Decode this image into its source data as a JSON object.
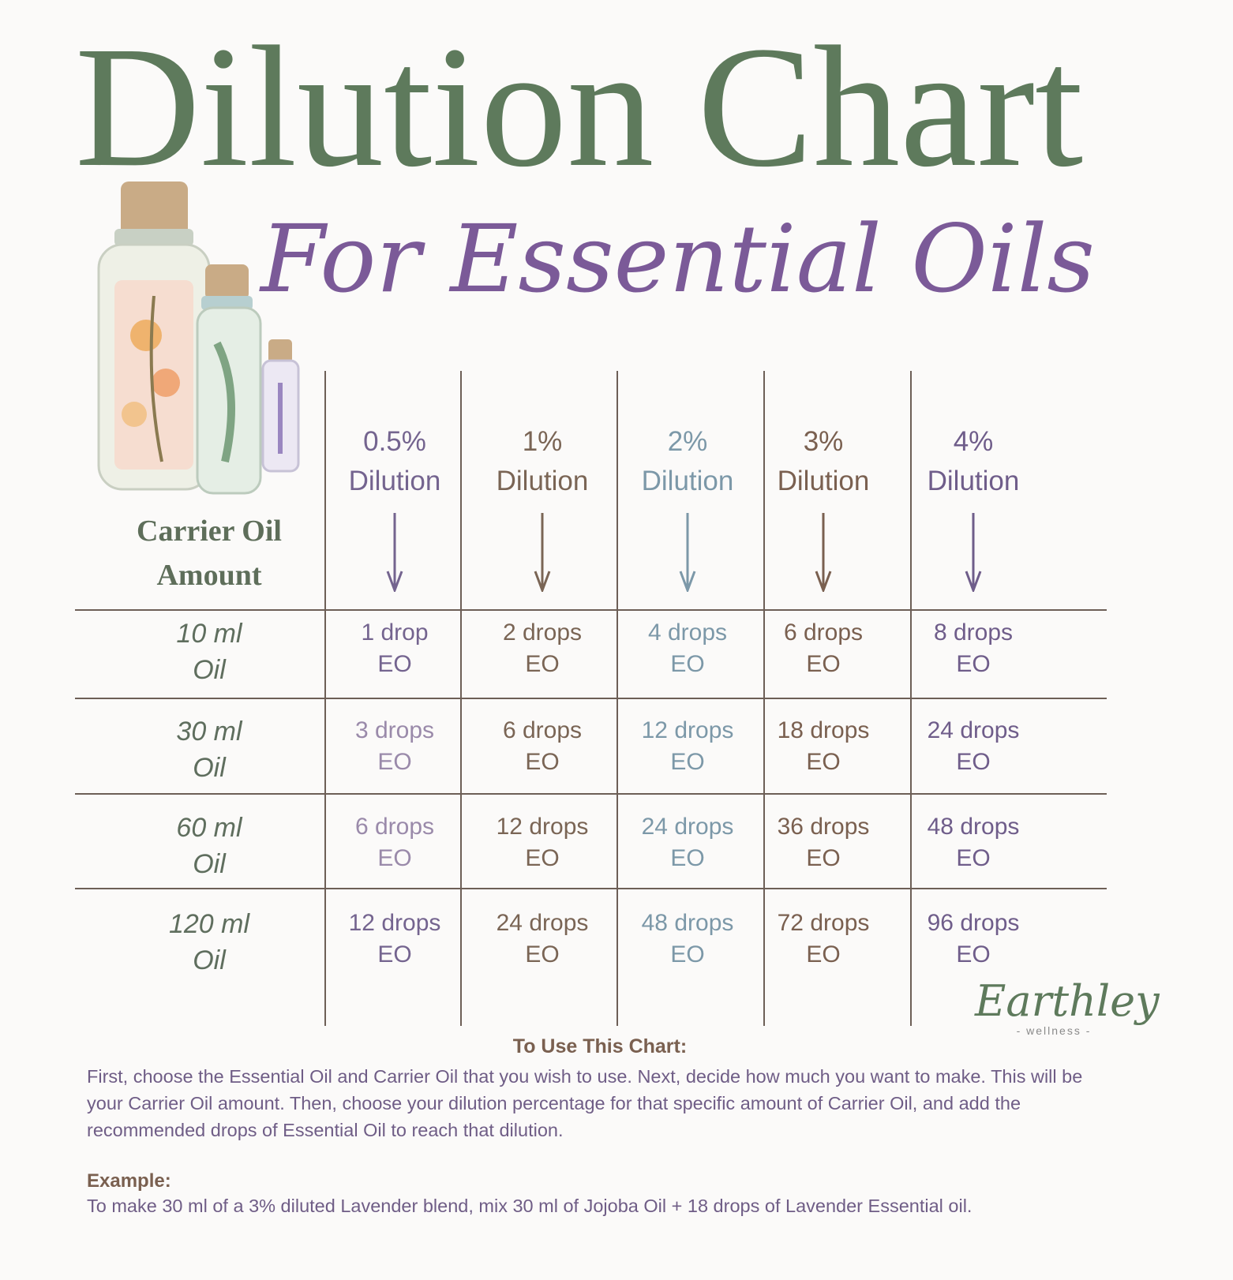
{
  "title": "Dilution Chart",
  "subtitle": "For Essential Oils",
  "carrier_header": [
    "Carrier Oil",
    "Amount"
  ],
  "colors": {
    "title": "#5e7a5c",
    "subtitle": "#7b5a98",
    "purple": "#74648f",
    "brown": "#7a6050",
    "blue": "#7c98a8",
    "row_label": "#5f6e5e",
    "grid": "#6d5f57"
  },
  "columns": [
    {
      "pct": "0.5%",
      "label": "Dilution",
      "color": "#74648f"
    },
    {
      "pct": "1%",
      "label": "Dilution",
      "color": "#7a6555"
    },
    {
      "pct": "2%",
      "label": "Dilution",
      "color": "#7c98a8"
    },
    {
      "pct": "3%",
      "label": "Dilution",
      "color": "#7a6050"
    },
    {
      "pct": "4%",
      "label": "Dilution",
      "color": "#6f5d8a"
    }
  ],
  "rows": [
    {
      "amount": "10 ml",
      "unit": "Oil",
      "cells": [
        "1 drop",
        "2 drops",
        "4 drops",
        "6 drops",
        "8 drops"
      ]
    },
    {
      "amount": "30 ml",
      "unit": "Oil",
      "cells": [
        "3 drops",
        "6 drops",
        "12 drops",
        "18 drops",
        "24 drops"
      ]
    },
    {
      "amount": "60 ml",
      "unit": "Oil",
      "cells": [
        "6 drops",
        "12 drops",
        "24 drops",
        "36 drops",
        "48 drops"
      ]
    },
    {
      "amount": "120 ml",
      "unit": "Oil",
      "cells": [
        "12 drops",
        "24 drops",
        "48 drops",
        "72 drops",
        "96 drops"
      ]
    }
  ],
  "cell_suffix": "EO",
  "logo": {
    "main": "Earthley",
    "sub": "- wellness -"
  },
  "instructions": {
    "title": "To Use This Chart:",
    "body": "First, choose the Essential Oil and Carrier Oil that you wish to use. Next, decide how much you want to make. This will be your Carrier Oil amount. Then, choose your dilution percentage for that specific amount of Carrier Oil, and add the recommended drops of Essential Oil to reach that dilution.",
    "example_title": "Example:",
    "example_body": "To make 30 ml of a 3% diluted Lavender blend, mix 30 ml of Jojoba Oil + 18 drops of Lavender Essential oil."
  }
}
